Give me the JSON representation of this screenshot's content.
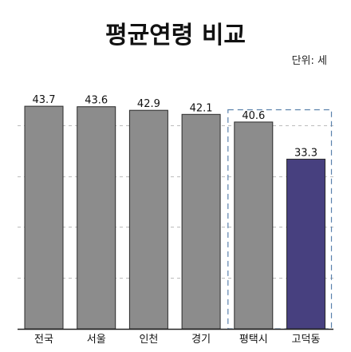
{
  "chart_data": {
    "type": "bar",
    "title": "평균연령 비교",
    "unit_note": "단위: 세",
    "categories": [
      "전국",
      "서울",
      "인천",
      "경기",
      "평택시",
      "고덕동"
    ],
    "values": [
      43.7,
      43.6,
      42.9,
      42.1,
      40.6,
      33.3
    ],
    "value_labels": [
      "43.7",
      "43.6",
      "42.9",
      "42.1",
      "40.6",
      "33.3"
    ],
    "ylim": [
      0,
      47
    ],
    "grid": "dashed horizontal",
    "highlight_index": 5,
    "highlight_group": [
      4,
      5
    ],
    "colors": {
      "default_bar": "#8c8c8c",
      "highlight_bar": "#47407f",
      "bar_outline": "#2a2a2a",
      "group_frame": "#5b82ad",
      "grid": "#bcbcbc",
      "baseline": "#222222"
    }
  }
}
